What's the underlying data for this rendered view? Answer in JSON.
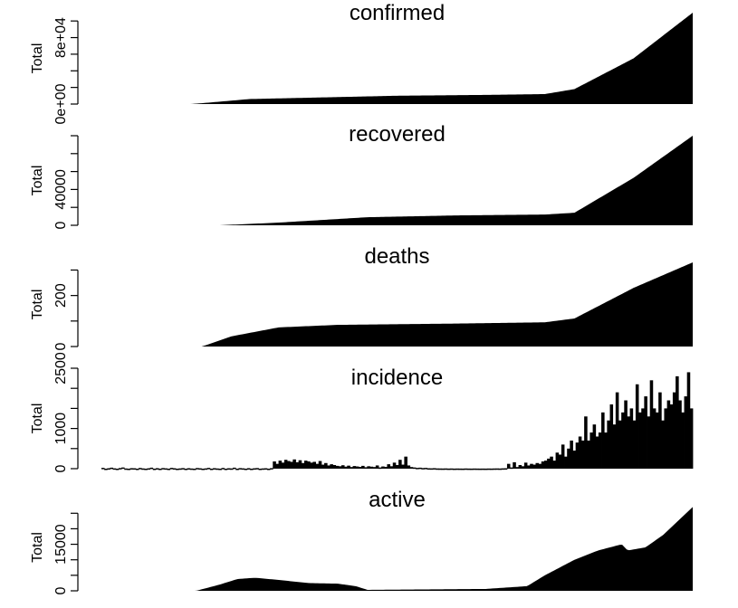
{
  "chart_data": [
    {
      "type": "area",
      "title": "confirmed",
      "ylabel": "Total",
      "ylim": [
        0,
        110000
      ],
      "yticks": [
        0,
        20000,
        40000,
        60000,
        80000,
        100000
      ],
      "ytick_labels": [
        "0e+00",
        "",
        "",
        "",
        "8e+04",
        ""
      ],
      "curve": [
        [
          0,
          0
        ],
        [
          0.15,
          0
        ],
        [
          0.17,
          1000
        ],
        [
          0.25,
          6000
        ],
        [
          0.5,
          10000
        ],
        [
          0.65,
          11000
        ],
        [
          0.75,
          12000
        ],
        [
          0.8,
          18000
        ],
        [
          0.9,
          55000
        ],
        [
          1,
          110000
        ]
      ]
    },
    {
      "type": "area",
      "title": "recovered",
      "ylabel": "Total",
      "ylim": [
        0,
        100000
      ],
      "yticks": [
        0,
        20000,
        40000,
        60000,
        80000,
        100000
      ],
      "ytick_labels": [
        "0",
        "",
        "40000",
        "",
        "",
        ""
      ],
      "curve": [
        [
          0,
          0
        ],
        [
          0.2,
          0
        ],
        [
          0.3,
          3000
        ],
        [
          0.45,
          9000
        ],
        [
          0.6,
          11000
        ],
        [
          0.75,
          12000
        ],
        [
          0.8,
          14000
        ],
        [
          0.9,
          53000
        ],
        [
          1,
          100000
        ]
      ]
    },
    {
      "type": "area",
      "title": "deaths",
      "ylabel": "Total",
      "ylim": [
        0,
        330
      ],
      "yticks": [
        0,
        100,
        200,
        300
      ],
      "ytick_labels": [
        "0",
        "",
        "200",
        ""
      ],
      "curve": [
        [
          0,
          0
        ],
        [
          0.17,
          0
        ],
        [
          0.22,
          40
        ],
        [
          0.3,
          75
        ],
        [
          0.4,
          85
        ],
        [
          0.6,
          90
        ],
        [
          0.75,
          95
        ],
        [
          0.8,
          110
        ],
        [
          0.9,
          230
        ],
        [
          1,
          330
        ]
      ]
    },
    {
      "type": "bar",
      "title": "incidence",
      "ylabel": "Total",
      "ylim": [
        0,
        2500
      ],
      "yticks": [
        0,
        500,
        1000,
        1500,
        2000,
        2500
      ],
      "ytick_labels": [
        "0",
        "",
        "1000",
        "",
        "",
        "2500"
      ],
      "bars": [
        20,
        0,
        10,
        25,
        8,
        0,
        15,
        30,
        5,
        0,
        12,
        10,
        0,
        18,
        6,
        0,
        9,
        25,
        0,
        12,
        0,
        15,
        8,
        0,
        20,
        10,
        0,
        6,
        14,
        0,
        11,
        4,
        0,
        16,
        9,
        0,
        7,
        20,
        0,
        12,
        5,
        0,
        18,
        0,
        10,
        6,
        25,
        0,
        14,
        8,
        0,
        12,
        0,
        9,
        15,
        0,
        6,
        10,
        0,
        13,
        180,
        120,
        200,
        150,
        220,
        190,
        170,
        230,
        160,
        210,
        140,
        200,
        180,
        150,
        170,
        120,
        190,
        100,
        140,
        80,
        110,
        90,
        70,
        60,
        85,
        50,
        75,
        40,
        65,
        55,
        45,
        70,
        35,
        60,
        50,
        40,
        80,
        30,
        55,
        45,
        110,
        60,
        150,
        90,
        220,
        100,
        300,
        80,
        40,
        30,
        20,
        25,
        15,
        20,
        10,
        8,
        12,
        6,
        5,
        4,
        6,
        3,
        5,
        2,
        4,
        3,
        2,
        5,
        3,
        2,
        4,
        3,
        2,
        3,
        2,
        4,
        3,
        5,
        6,
        4,
        8,
        10,
        120,
        30,
        160,
        40,
        90,
        60,
        150,
        80,
        120,
        100,
        140,
        120,
        180,
        200,
        250,
        300,
        200,
        400,
        350,
        600,
        300,
        500,
        700,
        450,
        650,
        800,
        700,
        1300,
        700,
        900,
        1100,
        800,
        900,
        1400,
        900,
        1200,
        1600,
        1100,
        1900,
        1200,
        1400,
        1700,
        1300,
        1500,
        1200,
        2100,
        1400,
        1500,
        1800,
        1300,
        2200,
        1500,
        1400,
        1900,
        1200,
        1500,
        1700,
        1600,
        1900,
        2300,
        1700,
        1400,
        1800,
        2400,
        1500
      ]
    },
    {
      "type": "area",
      "title": "active",
      "ylabel": "Total",
      "ylim": [
        0,
        28000
      ],
      "yticks": [
        0,
        5000,
        10000,
        15000,
        20000,
        25000
      ],
      "ytick_labels": [
        "0",
        "",
        "",
        "15000",
        "",
        ""
      ],
      "curve": [
        [
          0,
          0
        ],
        [
          0.16,
          0
        ],
        [
          0.2,
          2000
        ],
        [
          0.23,
          3800
        ],
        [
          0.26,
          4200
        ],
        [
          0.3,
          3500
        ],
        [
          0.35,
          2500
        ],
        [
          0.4,
          2300
        ],
        [
          0.43,
          1500
        ],
        [
          0.45,
          300
        ],
        [
          0.65,
          600
        ],
        [
          0.72,
          1500
        ],
        [
          0.75,
          5000
        ],
        [
          0.78,
          8000
        ],
        [
          0.8,
          10000
        ],
        [
          0.84,
          13000
        ],
        [
          0.88,
          15000
        ],
        [
          0.89,
          13000
        ],
        [
          0.92,
          14000
        ],
        [
          0.95,
          18000
        ],
        [
          1,
          27000
        ]
      ]
    }
  ]
}
